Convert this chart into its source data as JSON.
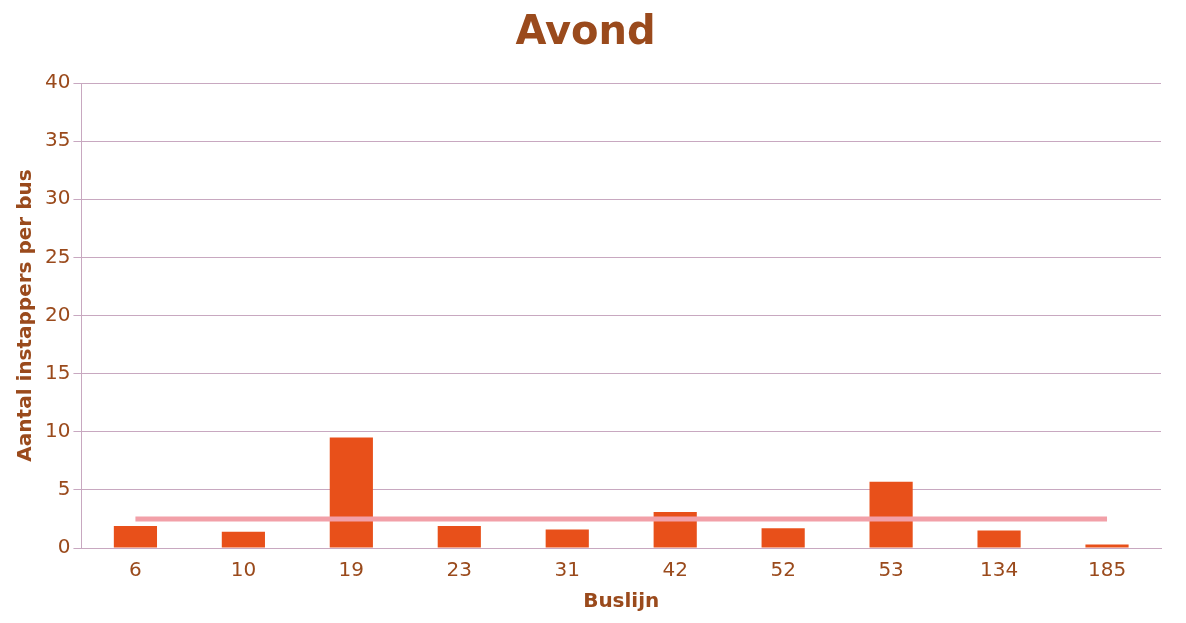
{
  "chart_data": {
    "type": "bar",
    "title": "Avond",
    "xlabel": "Buslijn",
    "ylabel": "Aantal instappers per bus",
    "categories": [
      "6",
      "10",
      "19",
      "23",
      "31",
      "42",
      "52",
      "53",
      "134",
      "185"
    ],
    "series": [
      {
        "color": "#e8501a",
        "values": [
          1.9,
          1.4,
          9.5,
          1.9,
          1.6,
          3.1,
          1.7,
          5.7,
          1.5,
          0.3
        ]
      },
      {
        "type": "line",
        "color": "#f2a0a8",
        "values": [
          2.5,
          2.5,
          2.5,
          2.5,
          2.5,
          2.5,
          2.5,
          2.5,
          2.5,
          2.5
        ]
      }
    ],
    "ylim": [
      0,
      40
    ],
    "yticks": [
      0,
      5,
      10,
      15,
      20,
      25,
      30,
      35,
      40
    ],
    "grid": "y",
    "legend": false,
    "marker": "none"
  }
}
